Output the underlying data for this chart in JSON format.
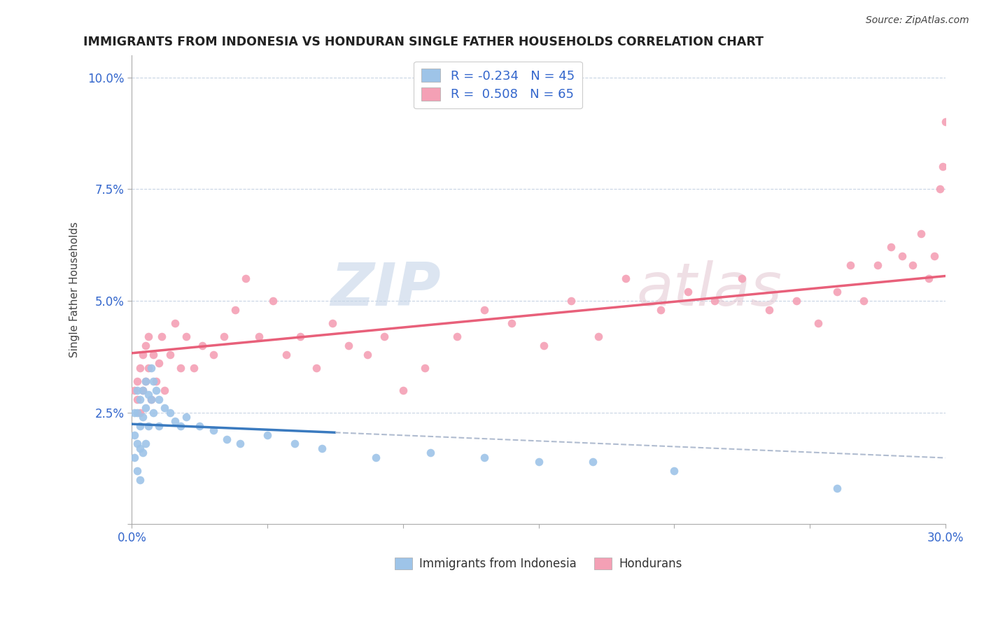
{
  "title": "IMMIGRANTS FROM INDONESIA VS HONDURAN SINGLE FATHER HOUSEHOLDS CORRELATION CHART",
  "source": "Source: ZipAtlas.com",
  "ylabel": "Single Father Households",
  "xlim": [
    0.0,
    0.3
  ],
  "ylim": [
    0.0,
    0.105
  ],
  "xticks": [
    0.0,
    0.05,
    0.1,
    0.15,
    0.2,
    0.25,
    0.3
  ],
  "xticklabels": [
    "0.0%",
    "",
    "",
    "",
    "",
    "",
    "30.0%"
  ],
  "yticks": [
    0.0,
    0.025,
    0.05,
    0.075,
    0.1
  ],
  "yticklabels": [
    "",
    "2.5%",
    "5.0%",
    "7.5%",
    "10.0%"
  ],
  "blue_R": -0.234,
  "blue_N": 45,
  "pink_R": 0.508,
  "pink_N": 65,
  "blue_color": "#9ec4e8",
  "pink_color": "#f4a0b5",
  "blue_line_color": "#3a7abf",
  "pink_line_color": "#e8607a",
  "dashed_line_color": "#b0bcd0",
  "grid_color": "#c8d4e4",
  "blue_scatter_x": [
    0.001,
    0.001,
    0.001,
    0.002,
    0.002,
    0.002,
    0.002,
    0.003,
    0.003,
    0.003,
    0.003,
    0.004,
    0.004,
    0.004,
    0.005,
    0.005,
    0.005,
    0.006,
    0.006,
    0.007,
    0.007,
    0.008,
    0.008,
    0.009,
    0.01,
    0.01,
    0.012,
    0.014,
    0.016,
    0.018,
    0.02,
    0.025,
    0.03,
    0.035,
    0.04,
    0.05,
    0.06,
    0.07,
    0.09,
    0.11,
    0.13,
    0.15,
    0.17,
    0.2,
    0.26
  ],
  "blue_scatter_y": [
    0.025,
    0.02,
    0.015,
    0.03,
    0.025,
    0.018,
    0.012,
    0.028,
    0.022,
    0.017,
    0.01,
    0.03,
    0.024,
    0.016,
    0.032,
    0.026,
    0.018,
    0.029,
    0.022,
    0.035,
    0.028,
    0.032,
    0.025,
    0.03,
    0.028,
    0.022,
    0.026,
    0.025,
    0.023,
    0.022,
    0.024,
    0.022,
    0.021,
    0.019,
    0.018,
    0.02,
    0.018,
    0.017,
    0.015,
    0.016,
    0.015,
    0.014,
    0.014,
    0.012,
    0.008
  ],
  "pink_scatter_x": [
    0.001,
    0.002,
    0.002,
    0.003,
    0.003,
    0.004,
    0.004,
    0.005,
    0.005,
    0.006,
    0.006,
    0.007,
    0.008,
    0.009,
    0.01,
    0.011,
    0.012,
    0.014,
    0.016,
    0.018,
    0.02,
    0.023,
    0.026,
    0.03,
    0.034,
    0.038,
    0.042,
    0.047,
    0.052,
    0.057,
    0.062,
    0.068,
    0.074,
    0.08,
    0.087,
    0.093,
    0.1,
    0.108,
    0.12,
    0.13,
    0.14,
    0.152,
    0.162,
    0.172,
    0.182,
    0.195,
    0.205,
    0.215,
    0.225,
    0.235,
    0.245,
    0.253,
    0.26,
    0.265,
    0.27,
    0.275,
    0.28,
    0.284,
    0.288,
    0.291,
    0.294,
    0.296,
    0.298,
    0.299,
    0.3
  ],
  "pink_scatter_y": [
    0.03,
    0.032,
    0.028,
    0.035,
    0.025,
    0.03,
    0.038,
    0.032,
    0.04,
    0.035,
    0.042,
    0.028,
    0.038,
    0.032,
    0.036,
    0.042,
    0.03,
    0.038,
    0.045,
    0.035,
    0.042,
    0.035,
    0.04,
    0.038,
    0.042,
    0.048,
    0.055,
    0.042,
    0.05,
    0.038,
    0.042,
    0.035,
    0.045,
    0.04,
    0.038,
    0.042,
    0.03,
    0.035,
    0.042,
    0.048,
    0.045,
    0.04,
    0.05,
    0.042,
    0.055,
    0.048,
    0.052,
    0.05,
    0.055,
    0.048,
    0.05,
    0.045,
    0.052,
    0.058,
    0.05,
    0.058,
    0.062,
    0.06,
    0.058,
    0.065,
    0.055,
    0.06,
    0.075,
    0.08,
    0.09
  ]
}
